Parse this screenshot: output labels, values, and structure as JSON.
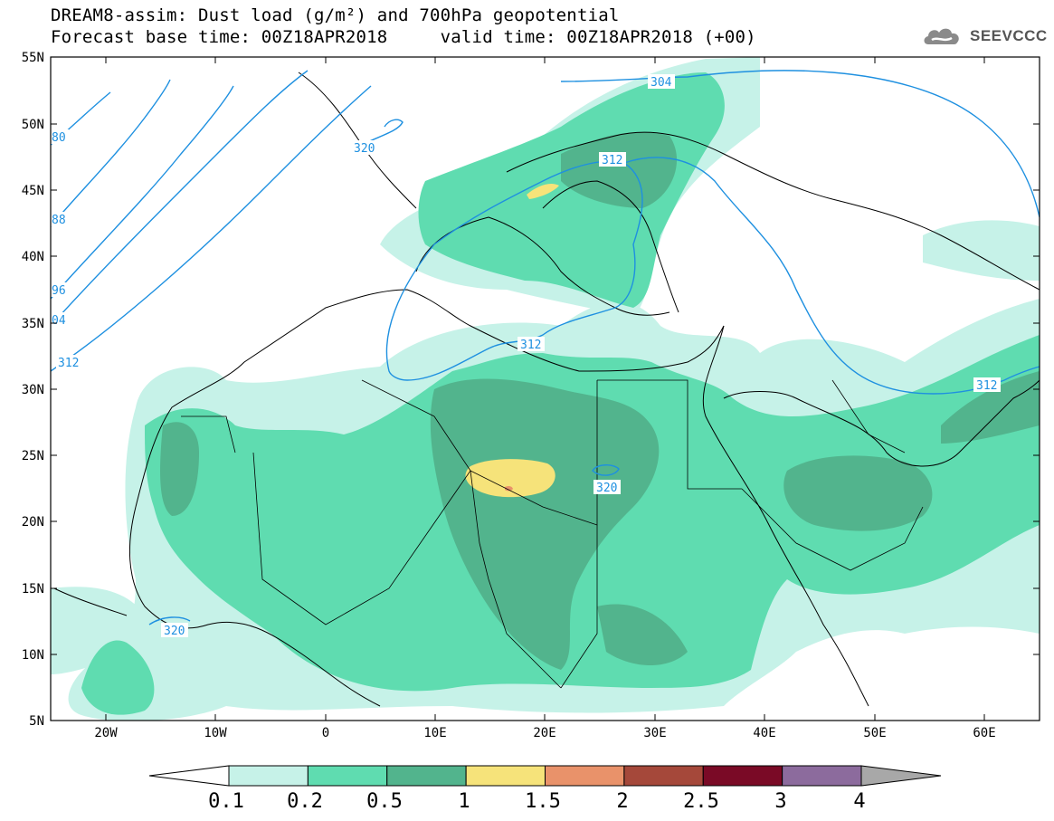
{
  "title": {
    "line1": "DREAM8-assim: Dust load (g/m²) and 700hPa geopotential",
    "line2": "Forecast base time: 00Z18APR2018     valid time: 00Z18APR2018 (+00)"
  },
  "logo": {
    "text": "SEEVCCC",
    "icon": "cloud-icon"
  },
  "axes": {
    "lat_labels": [
      "55N",
      "50N",
      "45N",
      "40N",
      "35N",
      "30N",
      "25N",
      "20N",
      "15N",
      "10N",
      "5N"
    ],
    "lon_labels": [
      "20W",
      "10W",
      "0",
      "10E",
      "20E",
      "30E",
      "40E",
      "50E",
      "60E"
    ]
  },
  "contours": {
    "color": "#1e90e0",
    "labels": [
      "304",
      "312",
      "320",
      "312",
      "312",
      "320",
      "320",
      "80",
      "88",
      "96",
      "04",
      "312"
    ]
  },
  "colorbar": {
    "levels": [
      "0.1",
      "0.2",
      "0.5",
      "1",
      "1.5",
      "2",
      "2.5",
      "3",
      "4"
    ],
    "colors": [
      "#c6f2e8",
      "#5fdcb0",
      "#52b48d",
      "#f6e37a",
      "#e9926a",
      "#a5483a",
      "#7a0a26",
      "#8c6b9d"
    ],
    "under_color": "#ffffff",
    "over_color": "#a8a8a8"
  },
  "fill_colors": {
    "light": "#c6f2e8",
    "mid": "#5fdcb0",
    "dark": "#52b48d",
    "yellow": "#f6e37a",
    "orange": "#e9926a"
  }
}
